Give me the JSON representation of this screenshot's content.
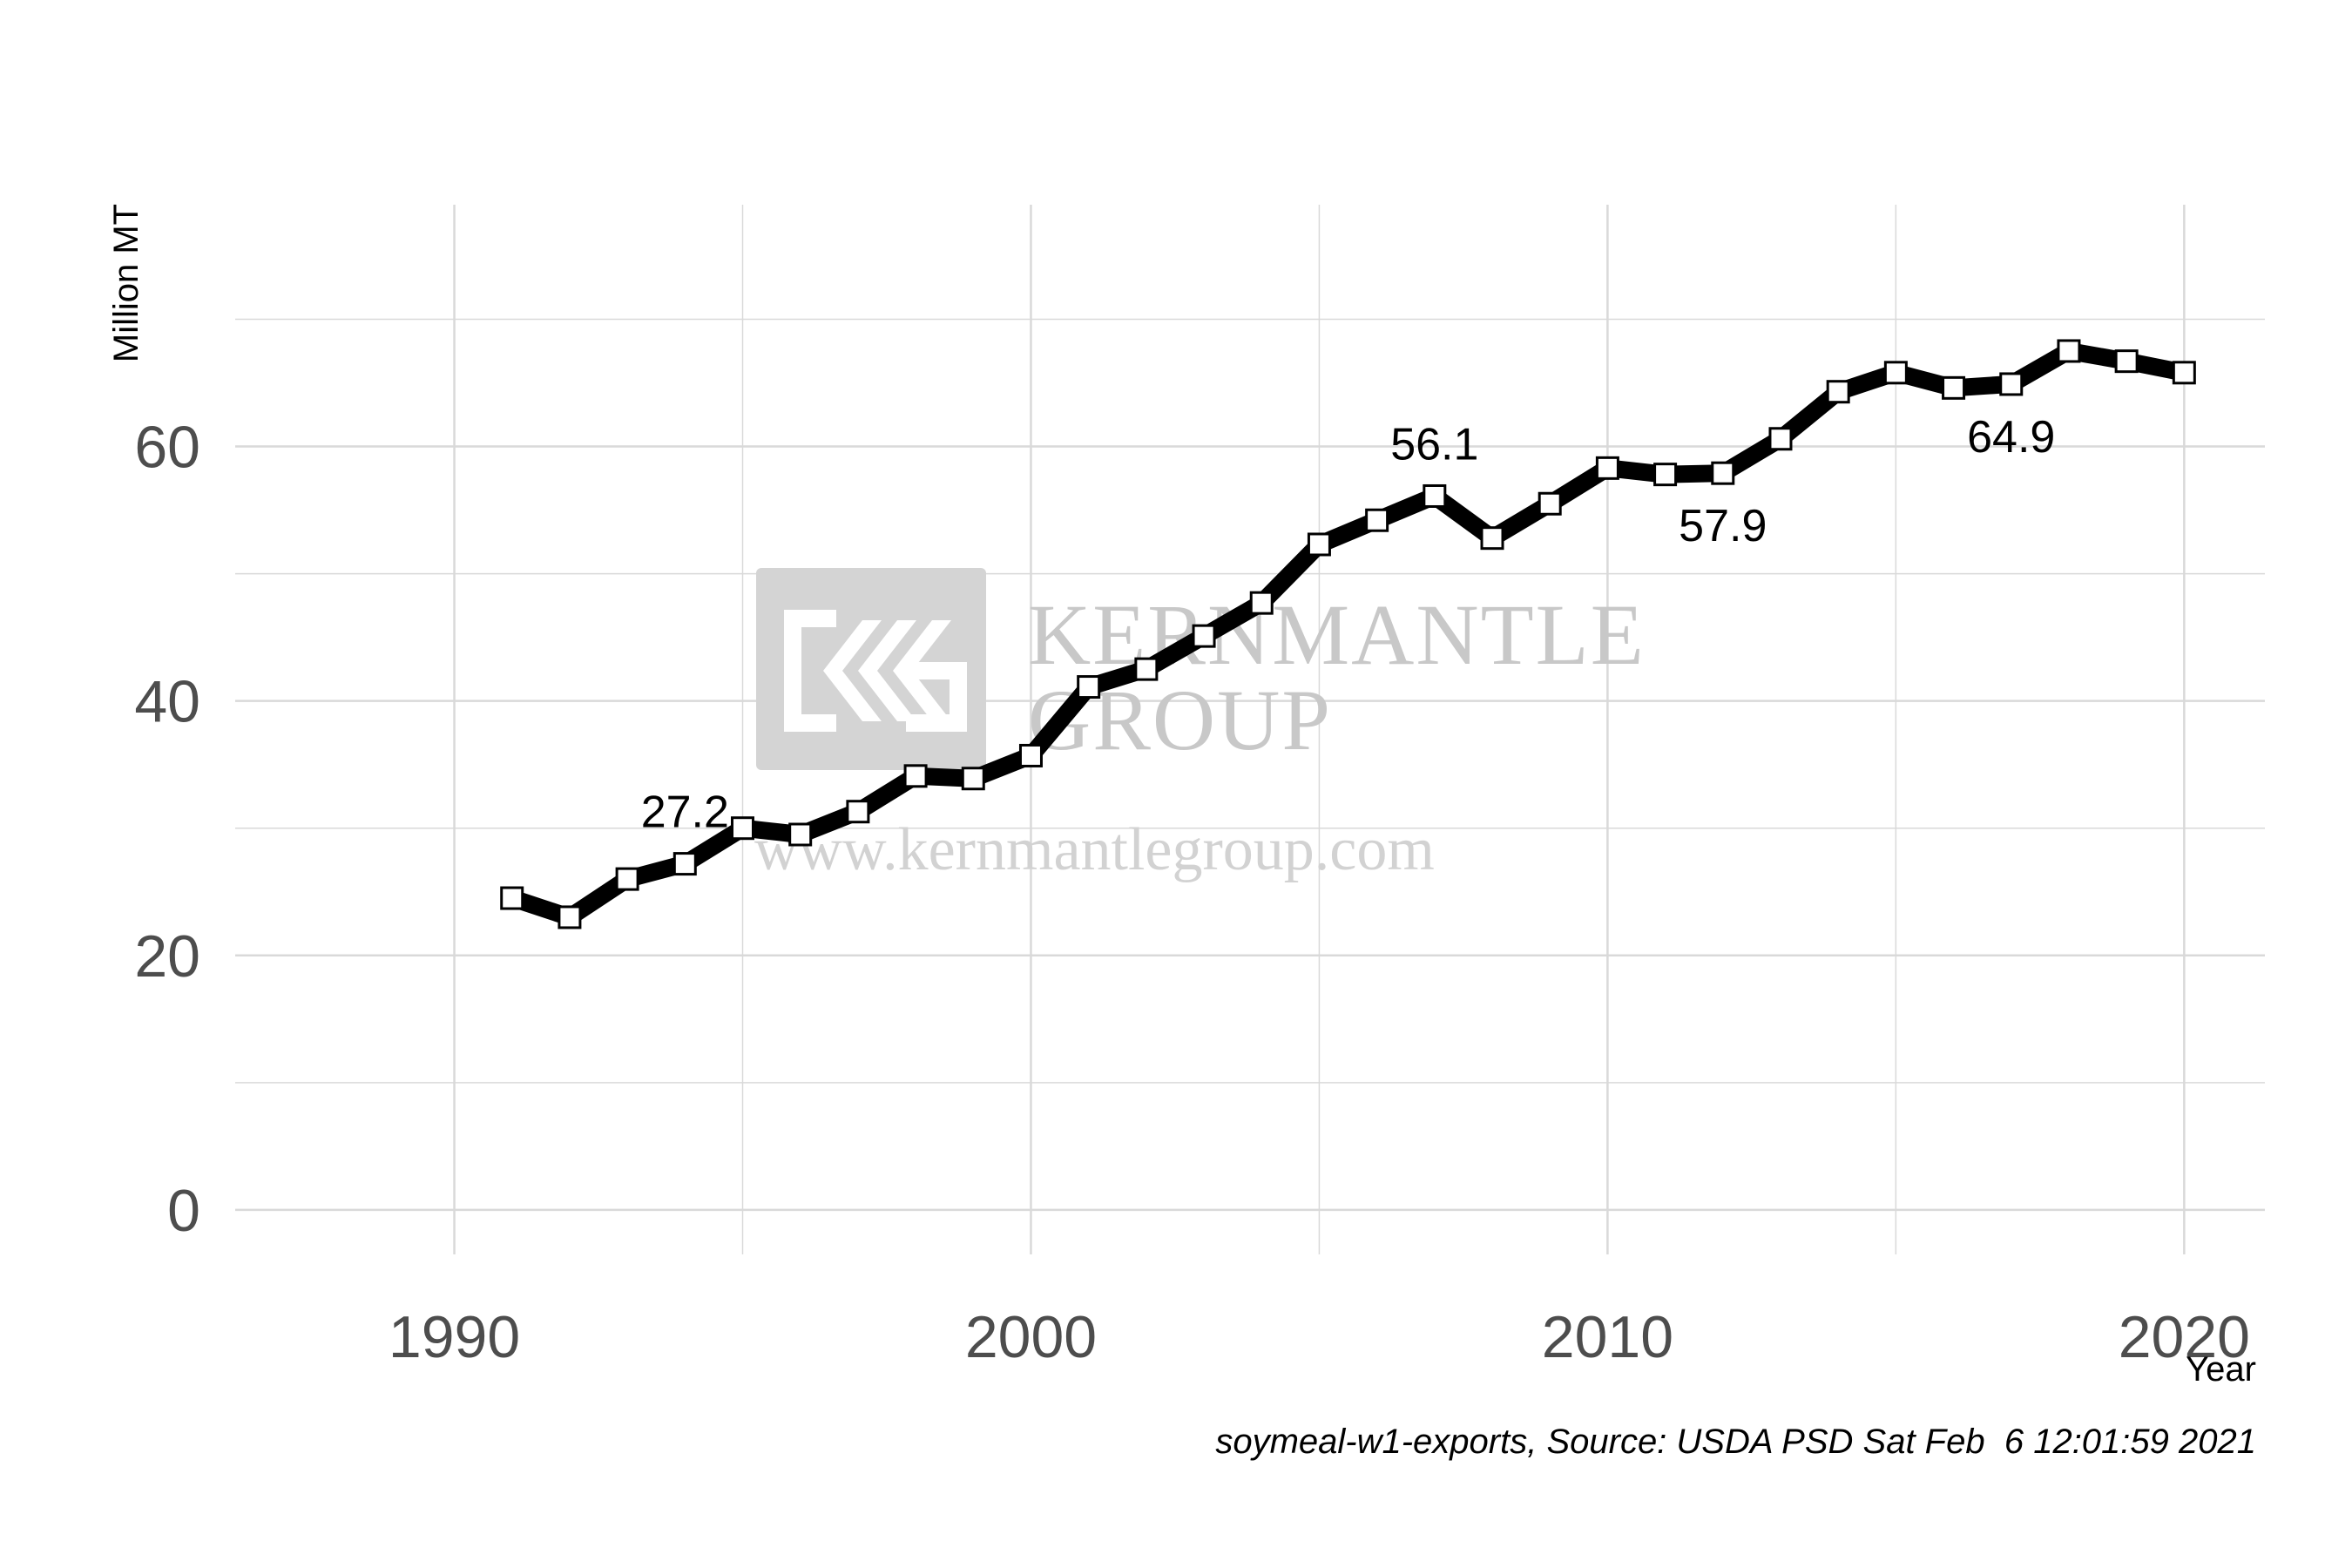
{
  "chart_data": {
    "type": "line",
    "xlabel": "Year",
    "ylabel": "Million MT",
    "xlim": [
      1986.2,
      2021.4
    ],
    "ylim": [
      -3.5,
      79
    ],
    "x_ticks": [
      1990,
      2000,
      2010,
      2020
    ],
    "y_ticks": [
      0,
      20,
      40,
      60
    ],
    "grid": true,
    "series": [
      {
        "x": [
          1991,
          1992,
          1993,
          1994,
          1995,
          1996,
          1997,
          1998,
          1999,
          2000,
          2001,
          2002,
          2003,
          2004,
          2005,
          2006,
          2007,
          2008,
          2009,
          2010,
          2011,
          2012,
          2013,
          2014,
          2015,
          2016,
          2017,
          2018,
          2019,
          2020
        ],
        "values": [
          24.5,
          23.0,
          26.0,
          27.2,
          30.0,
          29.5,
          31.3,
          34.1,
          33.9,
          35.7,
          41.1,
          42.5,
          45.1,
          47.7,
          52.3,
          54.2,
          56.1,
          52.8,
          55.5,
          58.3,
          57.8,
          57.9,
          60.6,
          64.3,
          65.8,
          64.6,
          64.9,
          67.5,
          66.7,
          65.8
        ]
      }
    ],
    "annotations": [
      {
        "x": 1994,
        "y": 27.2,
        "text": "27.2",
        "position": "above"
      },
      {
        "x": 2007,
        "y": 56.1,
        "text": "56.1",
        "position": "above"
      },
      {
        "x": 2012,
        "y": 57.9,
        "text": "57.9",
        "position": "below"
      },
      {
        "x": 2017,
        "y": 64.9,
        "text": "64.9",
        "position": "below"
      }
    ],
    "caption": "soymeal-w1-exports, Source: USDA PSD Sat Feb  6 12:01:59 2021"
  },
  "watermark": {
    "company_line1": "KERNMANTLE",
    "company_line2": "GROUP",
    "url": "www.kernmantlegroup.com"
  },
  "colors": {
    "line": "#000000",
    "marker_fill": "#ffffff",
    "grid": "#d9d9d9",
    "watermark": "#c8c8c8"
  }
}
